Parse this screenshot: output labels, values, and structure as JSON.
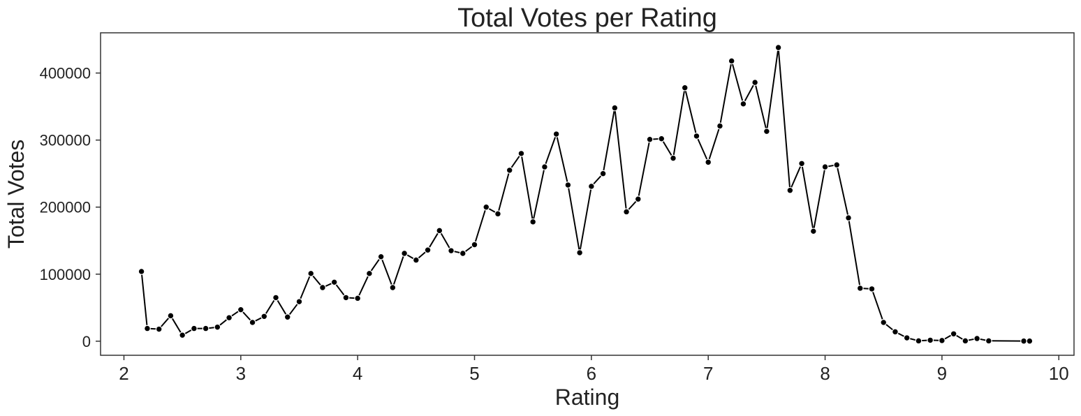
{
  "chart_data": {
    "type": "line",
    "title": "Total Votes per Rating",
    "xlabel": "Rating",
    "ylabel": "Total Votes",
    "xlim": [
      1.8,
      10.13
    ],
    "ylim": [
      -21000,
      460000
    ],
    "xticks": [
      2,
      3,
      4,
      5,
      6,
      7,
      8,
      9,
      10
    ],
    "yticks": [
      0,
      100000,
      200000,
      300000,
      400000
    ],
    "grid": false,
    "marker": "circle",
    "line_color": "#000000",
    "series": [
      {
        "points": [
          [
            2.15,
            104000
          ],
          [
            2.2,
            19000
          ],
          [
            2.3,
            18000
          ],
          [
            2.4,
            38000
          ],
          [
            2.5,
            9000
          ],
          [
            2.6,
            19000
          ],
          [
            2.7,
            19000
          ],
          [
            2.8,
            21000
          ],
          [
            2.9,
            35000
          ],
          [
            3.0,
            47000
          ],
          [
            3.1,
            28000
          ],
          [
            3.2,
            37000
          ],
          [
            3.3,
            65000
          ],
          [
            3.4,
            36000
          ],
          [
            3.5,
            59000
          ],
          [
            3.6,
            101000
          ],
          [
            3.7,
            80000
          ],
          [
            3.8,
            88000
          ],
          [
            3.9,
            65000
          ],
          [
            4.0,
            64000
          ],
          [
            4.1,
            101000
          ],
          [
            4.2,
            126000
          ],
          [
            4.3,
            80000
          ],
          [
            4.4,
            131000
          ],
          [
            4.5,
            121000
          ],
          [
            4.6,
            136000
          ],
          [
            4.7,
            165000
          ],
          [
            4.8,
            135000
          ],
          [
            4.9,
            131000
          ],
          [
            5.0,
            144000
          ],
          [
            5.1,
            200000
          ],
          [
            5.2,
            190000
          ],
          [
            5.3,
            255000
          ],
          [
            5.4,
            280000
          ],
          [
            5.5,
            178000
          ],
          [
            5.6,
            260000
          ],
          [
            5.7,
            309000
          ],
          [
            5.8,
            233000
          ],
          [
            5.9,
            132000
          ],
          [
            6.0,
            231000
          ],
          [
            6.1,
            250000
          ],
          [
            6.2,
            348000
          ],
          [
            6.3,
            193000
          ],
          [
            6.4,
            212000
          ],
          [
            6.5,
            301000
          ],
          [
            6.6,
            302000
          ],
          [
            6.7,
            273000
          ],
          [
            6.8,
            378000
          ],
          [
            6.9,
            306000
          ],
          [
            7.0,
            267000
          ],
          [
            7.1,
            321000
          ],
          [
            7.2,
            418000
          ],
          [
            7.3,
            354000
          ],
          [
            7.4,
            386000
          ],
          [
            7.5,
            313000
          ],
          [
            7.6,
            438000
          ],
          [
            7.7,
            225000
          ],
          [
            7.8,
            265000
          ],
          [
            7.9,
            164000
          ],
          [
            8.0,
            260000
          ],
          [
            8.1,
            263000
          ],
          [
            8.2,
            184000
          ],
          [
            8.3,
            79000
          ],
          [
            8.4,
            78000
          ],
          [
            8.5,
            28000
          ],
          [
            8.6,
            14000
          ],
          [
            8.7,
            5000
          ],
          [
            8.8,
            500
          ],
          [
            8.9,
            1500
          ],
          [
            9.0,
            1000
          ],
          [
            9.1,
            11000
          ],
          [
            9.2,
            500
          ],
          [
            9.3,
            4000
          ],
          [
            9.4,
            500
          ],
          [
            9.7,
            200
          ],
          [
            9.75,
            200
          ]
        ]
      }
    ]
  }
}
